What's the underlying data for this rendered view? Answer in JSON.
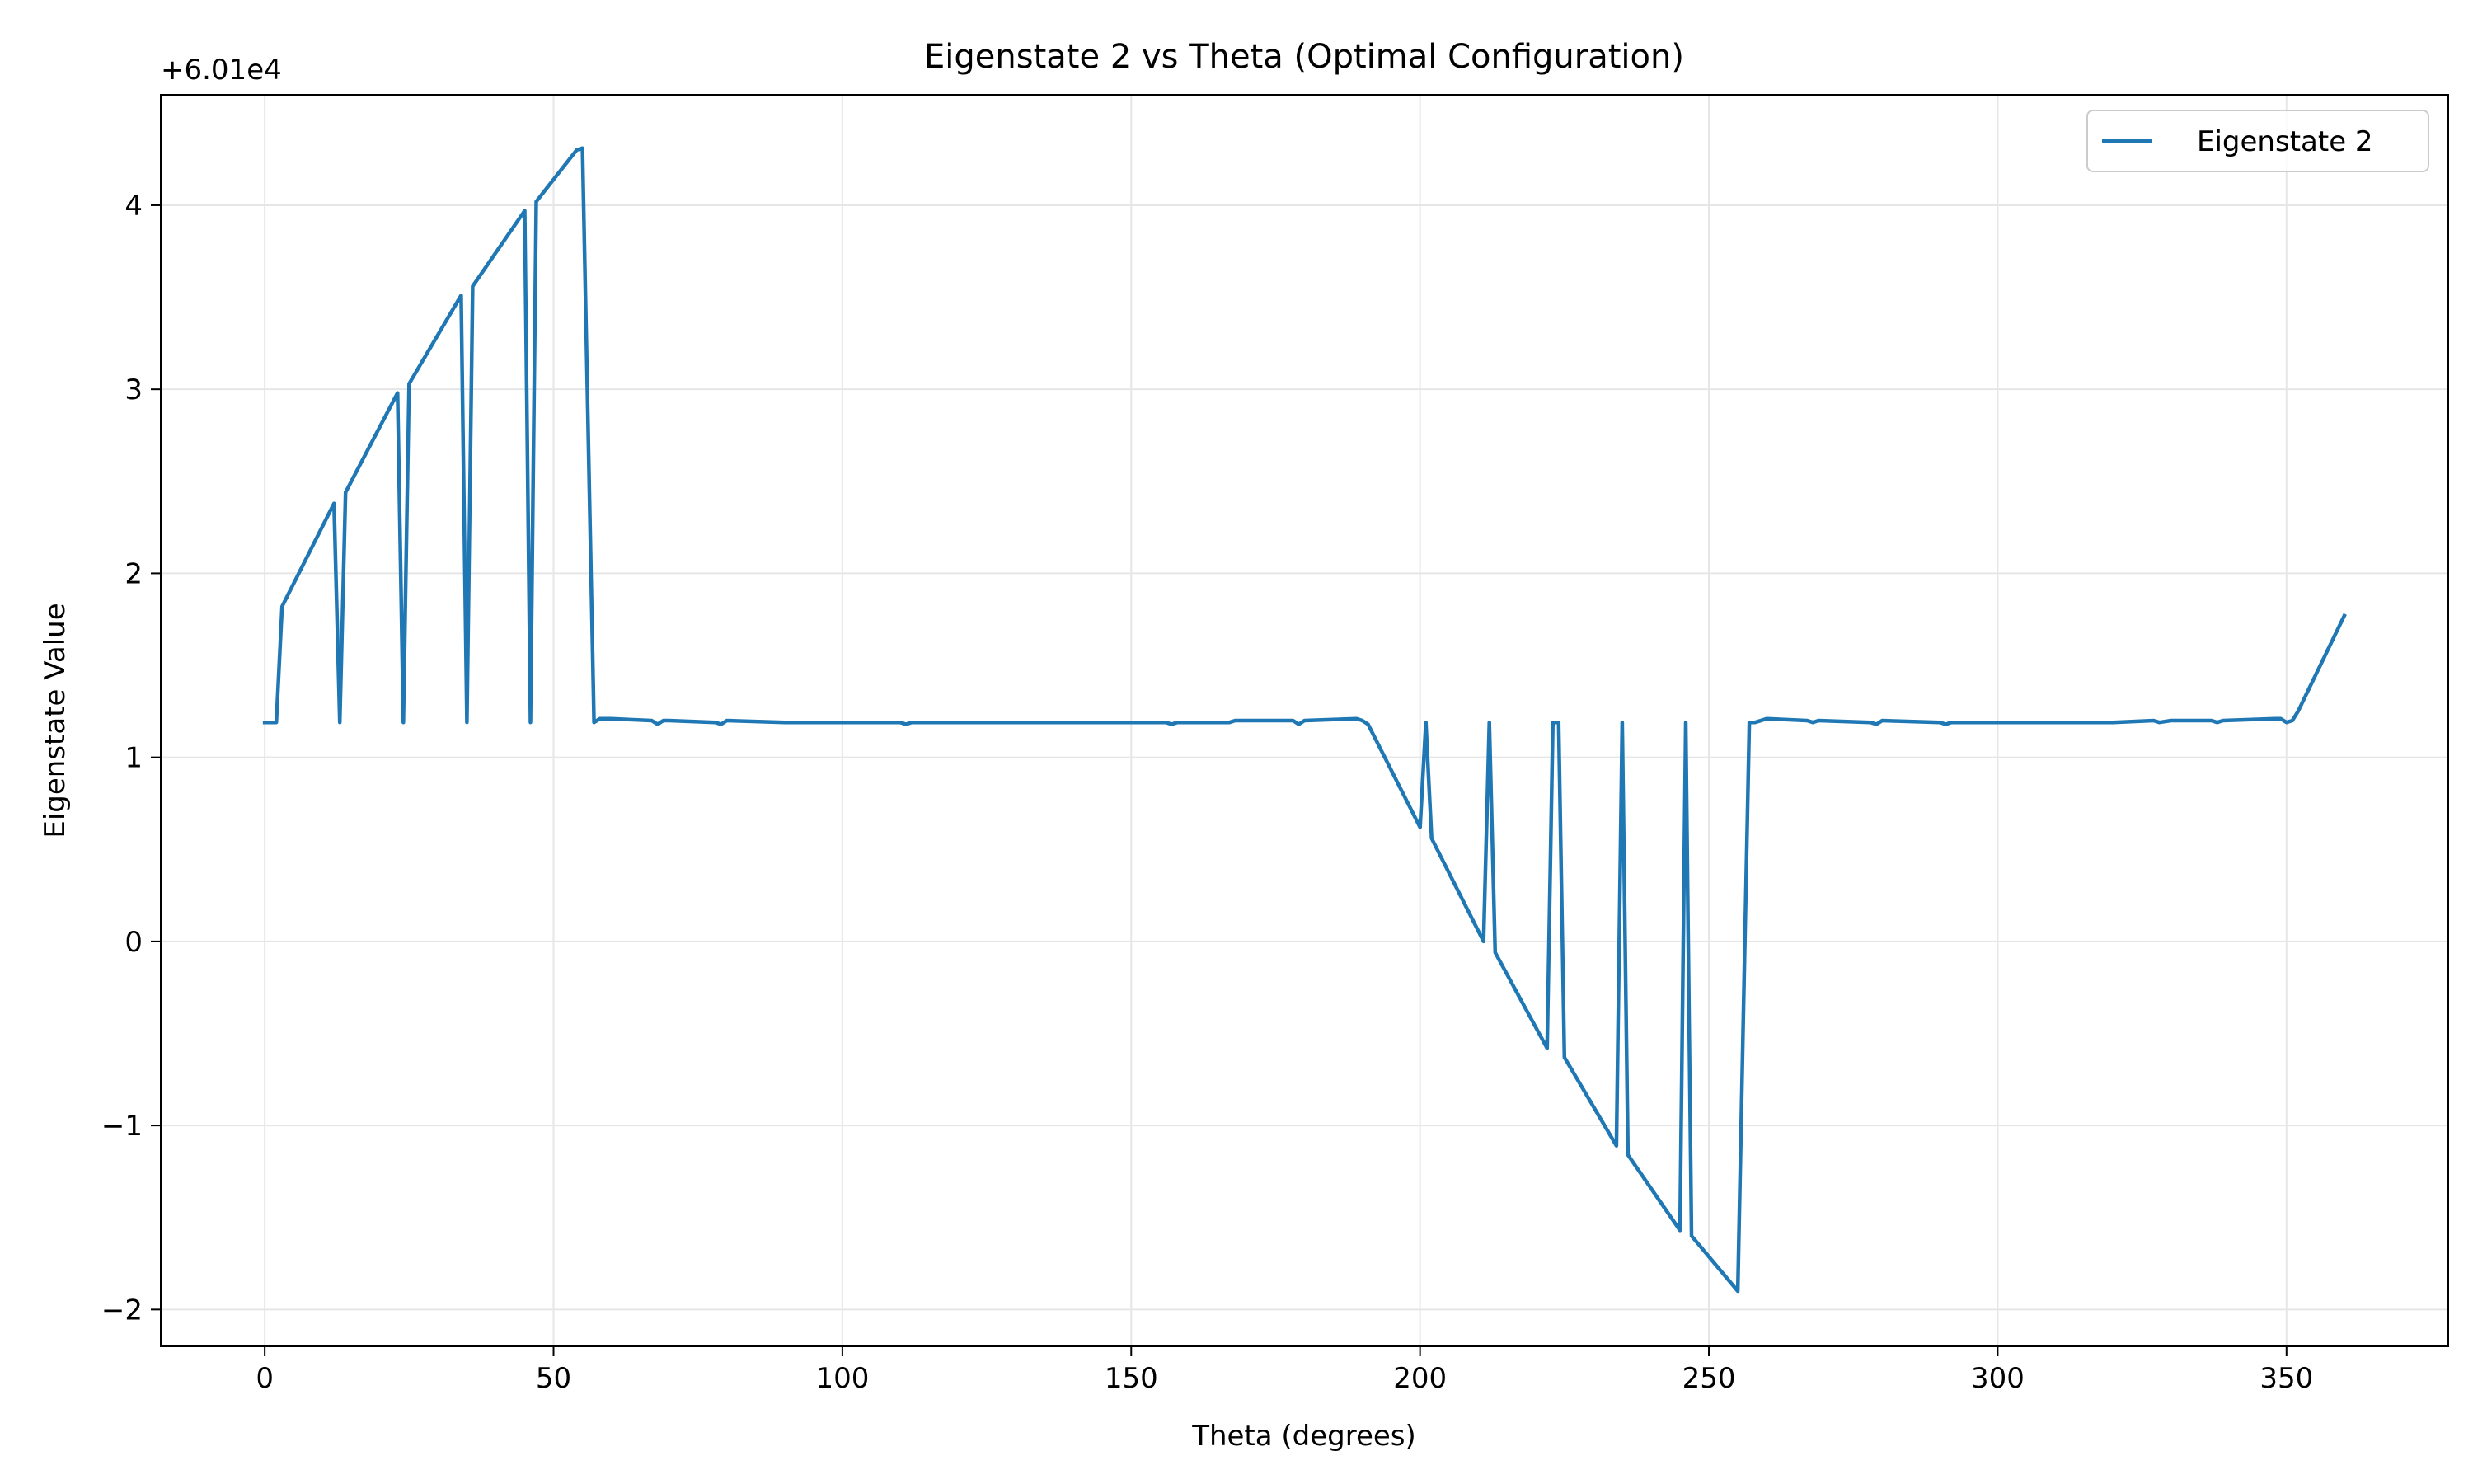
{
  "chart_data": {
    "type": "line",
    "title": "Eigenstate 2 vs Theta (Optimal Configuration)",
    "xlabel": "Theta (degrees)",
    "ylabel": "Eigenstate Value",
    "offset_label": "+6.01e4",
    "xlim": [
      -18,
      378
    ],
    "ylim": [
      -2.2,
      4.6
    ],
    "xticks": [
      0,
      50,
      100,
      150,
      200,
      250,
      300,
      350
    ],
    "xtick_labels": [
      "0",
      "50",
      "100",
      "150",
      "200",
      "250",
      "300",
      "350"
    ],
    "yticks": [
      -2,
      -1,
      0,
      1,
      2,
      3,
      4
    ],
    "ytick_labels": [
      "−2",
      "−1",
      "0",
      "1",
      "2",
      "3",
      "4"
    ],
    "grid": true,
    "legend": {
      "position": "upper right",
      "entries": [
        "Eigenstate 2"
      ]
    },
    "colors": {
      "series": "#1f77b4",
      "grid": "#e6e6e6"
    },
    "series": [
      {
        "name": "Eigenstate 2",
        "x": [
          0,
          2,
          3,
          12,
          13,
          14,
          23,
          24,
          25,
          34,
          35,
          36,
          45,
          46,
          47,
          54,
          55,
          57,
          58,
          60,
          67,
          68,
          69,
          70,
          78,
          79,
          80,
          90,
          100,
          110,
          111,
          112,
          120,
          130,
          140,
          146,
          147,
          150,
          156,
          157,
          158,
          165,
          167,
          168,
          169,
          178,
          179,
          180,
          189,
          190,
          191,
          200,
          201,
          202,
          211,
          212,
          213,
          222,
          223,
          224,
          225,
          234,
          235,
          236,
          245,
          246,
          247,
          255,
          257,
          258,
          260,
          267,
          268,
          269,
          278,
          279,
          280,
          290,
          291,
          292,
          293,
          300,
          310,
          320,
          327,
          328,
          330,
          337,
          338,
          339,
          348,
          349,
          350,
          351,
          352,
          360
        ],
        "y": [
          1.19,
          1.19,
          1.82,
          2.38,
          1.19,
          2.44,
          2.98,
          1.19,
          3.03,
          3.51,
          1.19,
          3.56,
          3.97,
          1.19,
          4.02,
          4.3,
          4.31,
          1.19,
          1.21,
          1.21,
          1.2,
          1.18,
          1.2,
          1.2,
          1.19,
          1.18,
          1.2,
          1.19,
          1.19,
          1.19,
          1.18,
          1.19,
          1.19,
          1.19,
          1.19,
          1.19,
          1.19,
          1.19,
          1.19,
          1.18,
          1.19,
          1.19,
          1.19,
          1.2,
          1.2,
          1.2,
          1.18,
          1.2,
          1.21,
          1.2,
          1.18,
          0.62,
          1.19,
          0.56,
          0.0,
          1.19,
          -0.06,
          -0.58,
          1.19,
          1.19,
          -0.63,
          -1.11,
          1.19,
          -1.16,
          -1.57,
          1.19,
          -1.6,
          -1.9,
          1.19,
          1.19,
          1.21,
          1.2,
          1.19,
          1.2,
          1.19,
          1.18,
          1.2,
          1.19,
          1.18,
          1.19,
          1.19,
          1.19,
          1.19,
          1.19,
          1.2,
          1.19,
          1.2,
          1.2,
          1.19,
          1.2,
          1.21,
          1.21,
          1.19,
          1.2,
          1.25,
          1.77
        ]
      }
    ]
  }
}
